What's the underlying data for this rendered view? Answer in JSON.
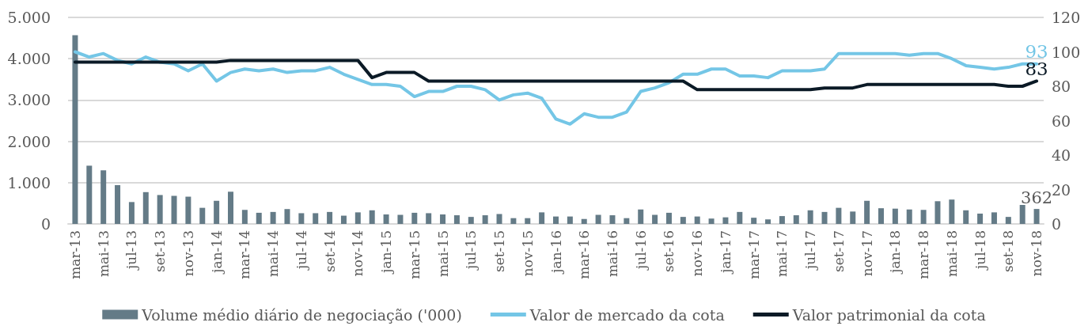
{
  "chart_data": {
    "type": "bar",
    "categories": [
      "mar-13",
      null,
      "mai-13",
      null,
      "jul-13",
      null,
      "set-13",
      null,
      "nov-13",
      null,
      "jan-14",
      null,
      "mar-14",
      null,
      "mai-14",
      null,
      "jul-14",
      null,
      "set-14",
      null,
      "nov-14",
      null,
      "jan-15",
      null,
      "mar-15",
      null,
      "mai-15",
      null,
      "jul-15",
      null,
      "set-15",
      null,
      "nov-15",
      null,
      "jan-16",
      null,
      "mar-16",
      null,
      "mai-16",
      null,
      "jul-16",
      null,
      "set-16",
      null,
      "nov-16",
      null,
      "jan-17",
      null,
      "mar-17",
      null,
      "mai-17",
      null,
      "jul-17",
      null,
      "set-17",
      null,
      "nov-17",
      null,
      "jan-18",
      null,
      "mar-18",
      null,
      "mai-18",
      null,
      "jul-18",
      null,
      "set-18",
      null,
      "nov-18"
    ],
    "series": [
      {
        "name": "Volume médio diário de negociação ('000)",
        "color": "#647b87",
        "values": [
          4570,
          1410,
          1300,
          940,
          530,
          770,
          700,
          680,
          660,
          390,
          560,
          780,
          340,
          270,
          290,
          360,
          260,
          260,
          290,
          200,
          280,
          330,
          230,
          220,
          270,
          260,
          230,
          210,
          170,
          210,
          240,
          140,
          140,
          280,
          180,
          180,
          120,
          220,
          210,
          140,
          350,
          220,
          270,
          170,
          180,
          130,
          160,
          290,
          150,
          110,
          190,
          210,
          330,
          290,
          390,
          300,
          560,
          380,
          370,
          350,
          340,
          550,
          590,
          330,
          250,
          280,
          170,
          460,
          362
        ],
        "value_labels": [
          null,
          null,
          null,
          null,
          null,
          null,
          null,
          null,
          null,
          null,
          null,
          null,
          null,
          null,
          null,
          null,
          null,
          null,
          null,
          null,
          null,
          null,
          null,
          null,
          null,
          null,
          null,
          null,
          null,
          null,
          null,
          null,
          null,
          null,
          null,
          null,
          null,
          null,
          null,
          null,
          null,
          null,
          null,
          null,
          null,
          null,
          null,
          null,
          null,
          null,
          null,
          null,
          null,
          null,
          null,
          null,
          null,
          null,
          null,
          null,
          null,
          null,
          null,
          null,
          null,
          null,
          null,
          null,
          "362"
        ]
      },
      {
        "name": "Valor de mercado da cota",
        "type": "line",
        "axis": "y2",
        "color": "#74c6e6",
        "values": [
          100,
          97,
          99,
          95,
          93,
          97,
          94,
          93,
          89,
          93,
          83,
          88,
          90,
          89,
          90,
          88,
          89,
          89,
          91,
          87,
          84,
          81,
          81,
          80,
          74,
          77,
          77,
          80,
          80,
          78,
          72,
          75,
          76,
          73,
          61,
          58,
          64,
          62,
          62,
          65,
          77,
          79,
          82,
          87,
          87,
          90,
          90,
          86,
          86,
          85,
          89,
          89,
          89,
          90,
          99,
          99,
          99,
          99,
          99,
          98,
          99,
          99,
          96,
          92,
          91,
          90,
          91,
          93,
          93
        ],
        "value_labels": [
          null,
          null,
          null,
          null,
          null,
          null,
          null,
          null,
          null,
          null,
          null,
          null,
          null,
          null,
          null,
          null,
          null,
          null,
          null,
          null,
          null,
          null,
          null,
          null,
          null,
          null,
          null,
          null,
          null,
          null,
          null,
          null,
          null,
          null,
          null,
          null,
          null,
          null,
          null,
          null,
          null,
          null,
          null,
          null,
          null,
          null,
          null,
          null,
          null,
          null,
          null,
          null,
          null,
          null,
          null,
          null,
          null,
          null,
          null,
          null,
          null,
          null,
          null,
          null,
          null,
          null,
          null,
          null,
          "93"
        ]
      },
      {
        "name": "Valor patrimonial da cota",
        "type": "line",
        "axis": "y2",
        "color": "#0b1a26",
        "values": [
          94,
          94,
          94,
          94,
          94,
          94,
          94,
          94,
          94,
          94,
          94,
          95,
          95,
          95,
          95,
          95,
          95,
          95,
          95,
          95,
          95,
          85,
          88,
          88,
          88,
          83,
          83,
          83,
          83,
          83,
          83,
          83,
          83,
          83,
          83,
          83,
          83,
          83,
          83,
          83,
          83,
          83,
          83,
          83,
          78,
          78,
          78,
          78,
          78,
          78,
          78,
          78,
          78,
          79,
          79,
          79,
          81,
          81,
          81,
          81,
          81,
          81,
          81,
          81,
          81,
          81,
          80,
          80,
          83
        ],
        "value_labels": [
          null,
          null,
          null,
          null,
          null,
          null,
          null,
          null,
          null,
          null,
          null,
          null,
          null,
          null,
          null,
          null,
          null,
          null,
          null,
          null,
          null,
          null,
          null,
          null,
          null,
          null,
          null,
          null,
          null,
          null,
          null,
          null,
          null,
          null,
          null,
          null,
          null,
          null,
          null,
          null,
          null,
          null,
          null,
          null,
          null,
          null,
          null,
          null,
          null,
          null,
          null,
          null,
          null,
          null,
          null,
          null,
          null,
          null,
          null,
          null,
          null,
          null,
          null,
          null,
          null,
          null,
          null,
          null,
          "83"
        ]
      }
    ],
    "ylim": [
      0,
      5000
    ],
    "yticks": [
      {
        "value": 0,
        "label": "0"
      },
      {
        "value": 1000,
        "label": "1.000"
      },
      {
        "value": 2000,
        "label": "2.000"
      },
      {
        "value": 3000,
        "label": "3.000"
      },
      {
        "value": 4000,
        "label": "4.000"
      },
      {
        "value": 5000,
        "label": "5.000"
      }
    ],
    "y2lim": [
      0,
      120
    ],
    "y2ticks": [
      0,
      20,
      40,
      60,
      80,
      100,
      120
    ],
    "grid": "y",
    "legend": "bottom",
    "line_style": "solid"
  }
}
